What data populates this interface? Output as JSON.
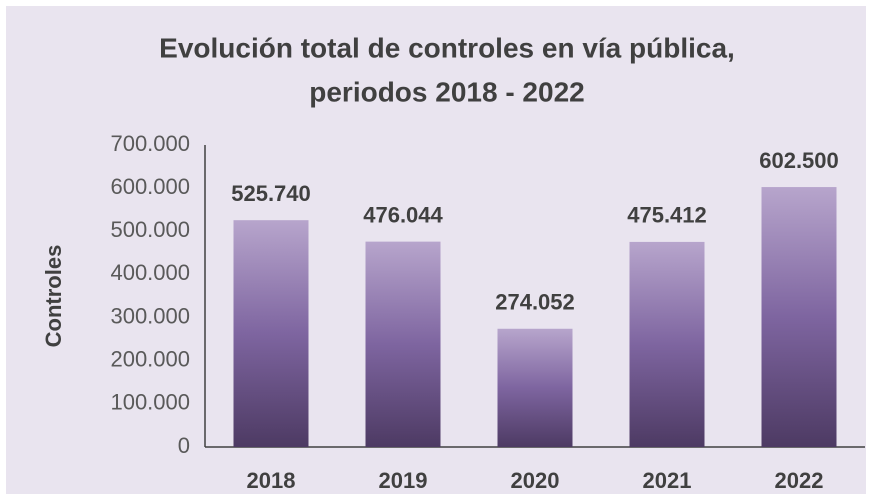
{
  "chart_data": {
    "type": "bar",
    "title": [
      "Evolución total de controles en vía pública,",
      "periodos 2018 - 2022"
    ],
    "y_label": "Controles",
    "categories": [
      "2018",
      "2019",
      "2020",
      "2021",
      "2022"
    ],
    "values": [
      525740,
      476044,
      274052,
      475412,
      602500
    ],
    "value_labels": [
      "525.740",
      "476.044",
      "274.052",
      "475.412",
      "602.500"
    ],
    "color": "#7e65a0",
    "ylim": [
      0,
      700000
    ],
    "yticks": [
      0,
      {
        "value": 100000,
        "label": "100.000"
      },
      {
        "value": 200000,
        "label": "200.000"
      },
      {
        "value": 300000,
        "label": "300.000"
      },
      {
        "value": 400000,
        "label": "400.000"
      },
      {
        "value": 500000,
        "label": "500.000"
      },
      {
        "value": 600000,
        "label": "600.000"
      },
      {
        "value": 700000,
        "label": "700.000"
      }
    ],
    "grid": false
  }
}
